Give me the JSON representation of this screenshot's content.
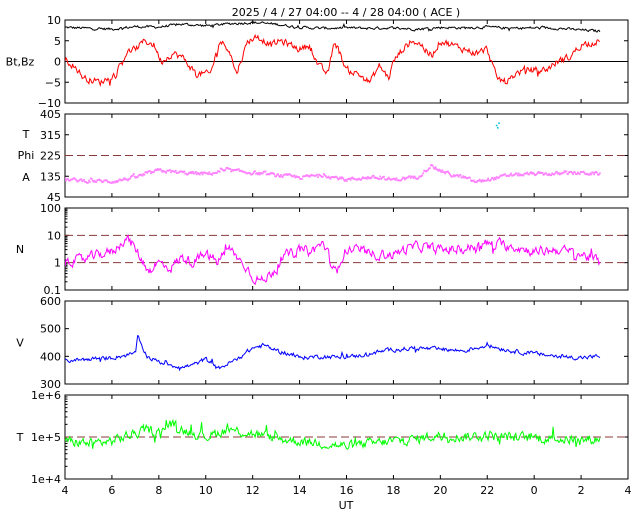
{
  "chart_data": {
    "type": "line",
    "title": "2025  /  4 / 27   04:00 -- 4 / 28   04:00 ( ACE )",
    "xlabel": "UT",
    "x_range_hours": [
      4,
      28
    ],
    "x_tick_labels": [
      "4",
      "6",
      "8",
      "10",
      "12",
      "14",
      "16",
      "18",
      "20",
      "22",
      "0",
      "2",
      "4"
    ],
    "data_end_hour": 26.8,
    "panels": [
      {
        "id": "mag",
        "ylabel": "Bt,Bz",
        "scale": "linear",
        "ylim": [
          -10,
          10
        ],
        "y_ticks": [
          10,
          5,
          0,
          -5,
          -10
        ],
        "y_tick_labels": [
          "10",
          "5",
          "0",
          "−5",
          "−10"
        ],
        "zero_line": 0,
        "series": [
          {
            "name": "Bt",
            "color": "#000000",
            "knots": [
              [
                4,
                8.2
              ],
              [
                5,
                8.0
              ],
              [
                6,
                7.8
              ],
              [
                7,
                8.4
              ],
              [
                8,
                8.3
              ],
              [
                9,
                9.0
              ],
              [
                10,
                8.6
              ],
              [
                11,
                9.1
              ],
              [
                12,
                9.4
              ],
              [
                13,
                9.0
              ],
              [
                14,
                8.2
              ],
              [
                15,
                8.0
              ],
              [
                16,
                8.1
              ],
              [
                17,
                8.0
              ],
              [
                18,
                8.1
              ],
              [
                19,
                7.8
              ],
              [
                20,
                8.2
              ],
              [
                21,
                8.1
              ],
              [
                22,
                8.3
              ],
              [
                23,
                8.0
              ],
              [
                24,
                8.1
              ],
              [
                25,
                8.0
              ],
              [
                26,
                7.6
              ],
              [
                26.8,
                7.3
              ]
            ],
            "noise": 0.5
          },
          {
            "name": "Bz",
            "color": "#ff0000",
            "knots": [
              [
                4,
                0.5
              ],
              [
                4.4,
                -1
              ],
              [
                4.8,
                -4
              ],
              [
                5.5,
                -5
              ],
              [
                6.2,
                -3
              ],
              [
                6.6,
                2
              ],
              [
                7,
                3
              ],
              [
                7.4,
                5
              ],
              [
                7.8,
                4
              ],
              [
                8.1,
                0
              ],
              [
                8.6,
                2
              ],
              [
                9,
                1
              ],
              [
                9.6,
                -3
              ],
              [
                10.2,
                -3
              ],
              [
                10.6,
                5
              ],
              [
                11,
                3
              ],
              [
                11.3,
                -3
              ],
              [
                11.8,
                5
              ],
              [
                12.2,
                6
              ],
              [
                12.8,
                4
              ],
              [
                13.2,
                5
              ],
              [
                13.6,
                4
              ],
              [
                14,
                3
              ],
              [
                14.4,
                4
              ],
              [
                14.8,
                -1
              ],
              [
                15.2,
                -3
              ],
              [
                15.5,
                5
              ],
              [
                16,
                -2
              ],
              [
                16.5,
                -3
              ],
              [
                17,
                -5
              ],
              [
                17.4,
                -1
              ],
              [
                17.8,
                -4
              ],
              [
                18,
                0
              ],
              [
                18.4,
                3
              ],
              [
                18.8,
                5
              ],
              [
                19.2,
                4
              ],
              [
                19.6,
                1
              ],
              [
                20,
                5
              ],
              [
                20.5,
                4
              ],
              [
                21,
                3
              ],
              [
                21.5,
                2
              ],
              [
                22,
                3
              ],
              [
                22.4,
                -4
              ],
              [
                22.8,
                -5
              ],
              [
                23.2,
                -3
              ],
              [
                23.6,
                -2
              ],
              [
                24,
                -2
              ],
              [
                24.5,
                -2
              ],
              [
                25,
                0
              ],
              [
                25.5,
                1
              ],
              [
                26,
                4
              ],
              [
                26.8,
                5
              ]
            ],
            "noise": 1.3
          }
        ]
      },
      {
        "id": "phi",
        "ylabel_lines": [
          "T",
          "Phi",
          "A"
        ],
        "scale": "linear",
        "ylim": [
          45,
          405
        ],
        "y_ticks": [
          405,
          315,
          225,
          135,
          45
        ],
        "y_tick_labels": [
          "405",
          "315",
          "225",
          "135",
          "45"
        ],
        "reference_lines": [
          225
        ],
        "series": [
          {
            "name": "Phi",
            "color": "#ff80ff",
            "style": "dots",
            "knots": [
              [
                4,
                120
              ],
              [
                5,
                115
              ],
              [
                6,
                112
              ],
              [
                7,
                130
              ],
              [
                8,
                160
              ],
              [
                9,
                150
              ],
              [
                10,
                145
              ],
              [
                11,
                160
              ],
              [
                12,
                150
              ],
              [
                13,
                140
              ],
              [
                14,
                130
              ],
              [
                15,
                140
              ],
              [
                16,
                120
              ],
              [
                17,
                130
              ],
              [
                18,
                120
              ],
              [
                19,
                130
              ],
              [
                19.6,
                180
              ],
              [
                20,
                160
              ],
              [
                20.5,
                140
              ],
              [
                21,
                130
              ],
              [
                21.5,
                110
              ],
              [
                22,
                120
              ],
              [
                22.5,
                130
              ],
              [
                23,
                140
              ],
              [
                24,
                145
              ],
              [
                25,
                145
              ],
              [
                26,
                150
              ],
              [
                26.8,
                145
              ]
            ],
            "noise": 12
          },
          {
            "name": "Phi-outlier",
            "color": "#00c0e0",
            "style": "dots",
            "points": [
              [
                22.4,
                355
              ],
              [
                22.45,
                345
              ],
              [
                22.5,
                365
              ]
            ]
          }
        ]
      },
      {
        "id": "density",
        "ylabel": "N",
        "scale": "log",
        "ylim": [
          0.1,
          100
        ],
        "y_ticks": [
          100,
          10,
          1,
          0.1
        ],
        "y_tick_labels": [
          "100",
          "10",
          "1",
          "0.1"
        ],
        "reference_lines": [
          10,
          1
        ],
        "series": [
          {
            "name": "N",
            "color": "#ff00ff",
            "knots": [
              [
                4,
                1.0
              ],
              [
                4.5,
                1.2
              ],
              [
                5,
                1.5
              ],
              [
                5.5,
                2.0
              ],
              [
                6,
                2.5
              ],
              [
                6.3,
                4.0
              ],
              [
                6.6,
                8.0
              ],
              [
                7,
                3.0
              ],
              [
                7.3,
                1.0
              ],
              [
                7.6,
                0.5
              ],
              [
                8,
                1.0
              ],
              [
                8.5,
                0.6
              ],
              [
                9,
                1.5
              ],
              [
                9.5,
                1.0
              ],
              [
                10,
                2.0
              ],
              [
                10.5,
                1.0
              ],
              [
                11,
                3.0
              ],
              [
                11.5,
                1.0
              ],
              [
                12,
                0.3
              ],
              [
                12.5,
                0.2
              ],
              [
                13,
                0.6
              ],
              [
                13.5,
                2.0
              ],
              [
                14,
                3.0
              ],
              [
                14.5,
                2.5
              ],
              [
                15,
                5.0
              ],
              [
                15.3,
                1.0
              ],
              [
                15.6,
                0.3
              ],
              [
                16,
                3.0
              ],
              [
                16.5,
                3.0
              ],
              [
                17,
                2.0
              ],
              [
                18,
                2.0
              ],
              [
                19,
                4.0
              ],
              [
                20,
                3.0
              ],
              [
                21,
                3.0
              ],
              [
                22,
                5.0
              ],
              [
                23,
                4.0
              ],
              [
                24,
                2.5
              ],
              [
                25,
                3.0
              ],
              [
                26,
                2.0
              ],
              [
                26.8,
                1.0
              ]
            ],
            "noise_log": 0.28
          }
        ]
      },
      {
        "id": "speed",
        "ylabel": "V",
        "scale": "linear",
        "ylim": [
          300,
          600
        ],
        "y_ticks": [
          600,
          500,
          400,
          300
        ],
        "y_tick_labels": [
          "600",
          "500",
          "400",
          "300"
        ],
        "series": [
          {
            "name": "V",
            "color": "#0000ff",
            "knots": [
              [
                4,
                385
              ],
              [
                5,
                390
              ],
              [
                6,
                395
              ],
              [
                7,
                410
              ],
              [
                7.1,
                470
              ],
              [
                7.5,
                400
              ],
              [
                8,
                380
              ],
              [
                8.5,
                370
              ],
              [
                9,
                360
              ],
              [
                9.5,
                370
              ],
              [
                10,
                390
              ],
              [
                10.5,
                355
              ],
              [
                11,
                375
              ],
              [
                11.5,
                400
              ],
              [
                12,
                430
              ],
              [
                12.5,
                440
              ],
              [
                13,
                420
              ],
              [
                13.5,
                410
              ],
              [
                14,
                395
              ],
              [
                15,
                400
              ],
              [
                16,
                395
              ],
              [
                17,
                410
              ],
              [
                18,
                425
              ],
              [
                19,
                430
              ],
              [
                20,
                425
              ],
              [
                21,
                420
              ],
              [
                22,
                440
              ],
              [
                23,
                420
              ],
              [
                24,
                410
              ],
              [
                25,
                400
              ],
              [
                26,
                395
              ],
              [
                26.8,
                400
              ]
            ],
            "noise": 12
          }
        ]
      },
      {
        "id": "temperature",
        "ylabel": "T",
        "scale": "log",
        "ylim": [
          10000,
          1000000
        ],
        "y_ticks": [
          1000000,
          100000,
          10000
        ],
        "y_tick_labels": [
          "1e+6",
          "1e+5",
          "1e+4"
        ],
        "reference_lines": [
          100000
        ],
        "series": [
          {
            "name": "Temperature",
            "color": "#00ff00",
            "knots": [
              [
                4,
                80000
              ],
              [
                5,
                70000
              ],
              [
                6,
                80000
              ],
              [
                7,
                120000
              ],
              [
                7.5,
                150000
              ],
              [
                8,
                130000
              ],
              [
                8.5,
                200000
              ],
              [
                9,
                150000
              ],
              [
                10,
                100000
              ],
              [
                11,
                150000
              ],
              [
                12,
                120000
              ],
              [
                13,
                90000
              ],
              [
                14,
                80000
              ],
              [
                15,
                70000
              ],
              [
                16,
                60000
              ],
              [
                17,
                70000
              ],
              [
                18,
                80000
              ],
              [
                19,
                90000
              ],
              [
                20,
                110000
              ],
              [
                21,
                100000
              ],
              [
                22,
                110000
              ],
              [
                23,
                100000
              ],
              [
                24,
                95000
              ],
              [
                25,
                90000
              ],
              [
                26,
                85000
              ],
              [
                26.8,
                90000
              ]
            ],
            "noise_log": 0.18
          }
        ]
      }
    ]
  }
}
